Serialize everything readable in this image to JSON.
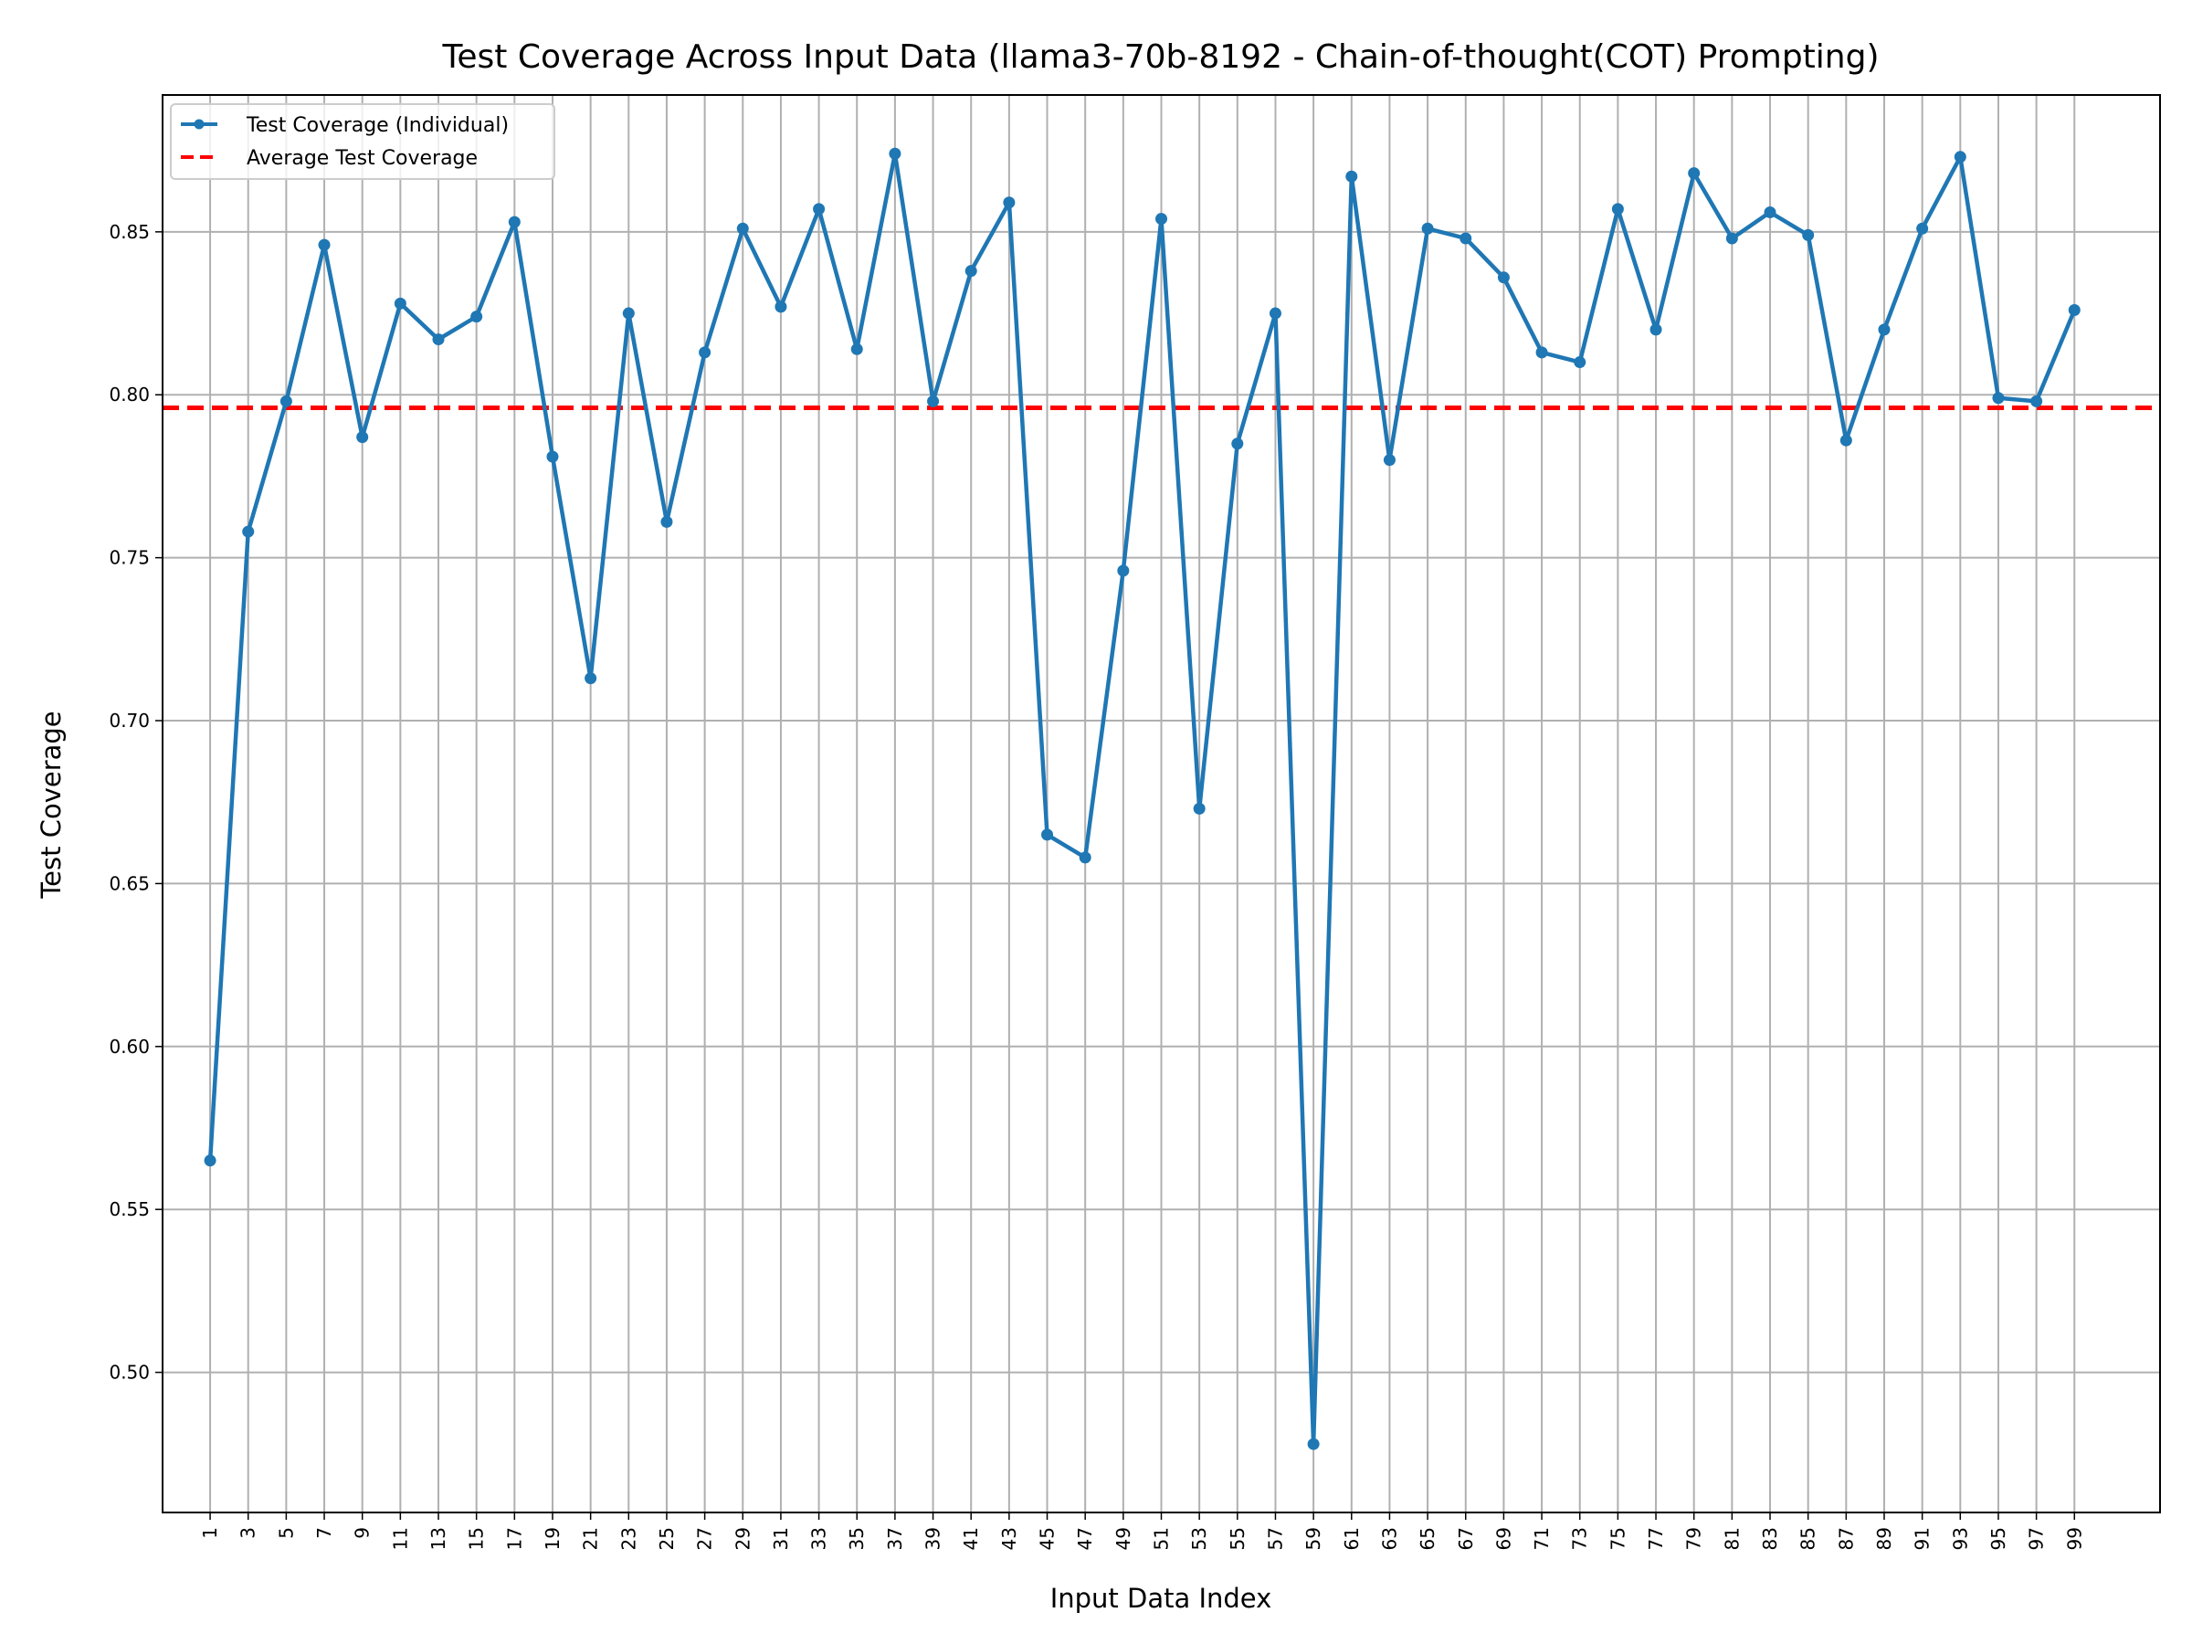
{
  "chart_data": {
    "type": "line",
    "title": "Test Coverage Across Input Data (llama3-70b-8192 - Chain-of-thought(COT) Prompting)",
    "xlabel": "Input Data Index",
    "ylabel": "Test Coverage",
    "xlim": [
      -1.5,
      103.5
    ],
    "ylim": [
      0.457,
      0.892
    ],
    "x_ticks": [
      1,
      3,
      5,
      7,
      9,
      11,
      13,
      15,
      17,
      19,
      21,
      23,
      25,
      27,
      29,
      31,
      33,
      35,
      37,
      39,
      41,
      43,
      45,
      47,
      49,
      51,
      53,
      55,
      57,
      59,
      61,
      63,
      65,
      67,
      69,
      71,
      73,
      75,
      77,
      79,
      81,
      83,
      85,
      87,
      89,
      91,
      93,
      95,
      97,
      99
    ],
    "x_tick_labels": [
      "1",
      "3",
      "5",
      "7",
      "9",
      "11",
      "13",
      "15",
      "17",
      "19",
      "21",
      "23",
      "25",
      "27",
      "29",
      "31",
      "33",
      "35",
      "37",
      "39",
      "41",
      "43",
      "45",
      "47",
      "49",
      "51",
      "53",
      "55",
      "57",
      "59",
      "61",
      "63",
      "65",
      "67",
      "69",
      "71",
      "73",
      "75",
      "77",
      "79",
      "81",
      "83",
      "85",
      "87",
      "89",
      "91",
      "93",
      "95",
      "97",
      "99"
    ],
    "y_ticks": [
      0.5,
      0.55,
      0.6,
      0.65,
      0.7,
      0.75,
      0.8,
      0.85
    ],
    "y_tick_labels": [
      "0.50",
      "0.55",
      "0.60",
      "0.65",
      "0.70",
      "0.75",
      "0.80",
      "0.85"
    ],
    "grid": true,
    "legend_position": "top-left",
    "series": [
      {
        "name": "Test Coverage (Individual)",
        "style": "solid-with-markers",
        "color": "#1f77b4",
        "x": [
          1,
          3,
          5,
          7,
          9,
          11,
          13,
          15,
          17,
          19,
          21,
          23,
          25,
          27,
          29,
          31,
          33,
          35,
          37,
          39,
          41,
          43,
          45,
          47,
          49,
          51,
          53,
          55,
          57,
          59,
          61,
          63,
          65,
          67,
          69,
          71,
          73,
          75,
          77,
          79,
          81,
          83,
          85,
          87,
          89,
          91,
          93,
          95,
          97,
          99
        ],
        "y": [
          0.565,
          0.758,
          0.798,
          0.846,
          0.787,
          0.828,
          0.817,
          0.824,
          0.853,
          0.781,
          0.713,
          0.825,
          0.761,
          0.813,
          0.851,
          0.827,
          0.857,
          0.814,
          0.874,
          0.798,
          0.838,
          0.859,
          0.665,
          0.658,
          0.746,
          0.854,
          0.673,
          0.785,
          0.825,
          0.478,
          0.867,
          0.78,
          0.851,
          0.848,
          0.836,
          0.813,
          0.81,
          0.857,
          0.82,
          0.868,
          0.848,
          0.856,
          0.849,
          0.786,
          0.82,
          0.851,
          0.873,
          0.799,
          0.798,
          0.826
        ]
      },
      {
        "name": "Average Test Coverage",
        "style": "dashed",
        "color": "#ff0000",
        "y": 0.796
      }
    ]
  }
}
